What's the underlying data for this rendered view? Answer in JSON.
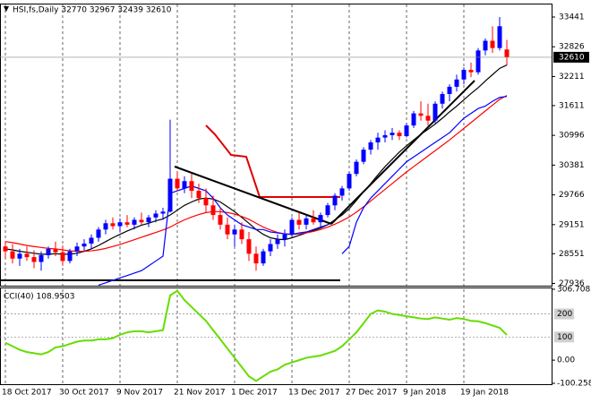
{
  "chart_data": [
    {
      "type": "candlestick",
      "title": "HSI,fs,Daily  32770 32967 32439 32610",
      "categories": [
        "18 Oct 2017",
        null,
        null,
        null,
        null,
        null,
        null,
        null,
        "30 Oct 2017",
        null,
        null,
        null,
        null,
        null,
        null,
        null,
        "9 Nov 2017",
        null,
        null,
        null,
        null,
        null,
        null,
        null,
        "21 Nov 2017",
        null,
        null,
        null,
        null,
        null,
        null,
        null,
        "1 Dec 2017",
        null,
        null,
        null,
        null,
        null,
        null,
        null,
        "13 Dec 2017",
        null,
        null,
        null,
        null,
        null,
        null,
        null,
        "27 Dec 2017",
        null,
        null,
        null,
        null,
        null,
        null,
        null,
        "9 Jan 2018",
        null,
        null,
        null,
        null,
        null,
        null,
        null,
        "19 Jan 2018",
        null,
        null,
        null,
        null,
        null,
        null
      ],
      "open": [
        28700,
        28600,
        28450,
        28550,
        28480,
        28380,
        28520,
        28650,
        28580,
        28400,
        28600,
        28700,
        28760,
        28880,
        29050,
        29180,
        29120,
        29200,
        29150,
        29250,
        29200,
        29300,
        29380,
        29420,
        30100,
        29900,
        30050,
        29850,
        29700,
        29550,
        29350,
        29150,
        28950,
        29050,
        28850,
        28550,
        28350,
        28600,
        28750,
        28850,
        28950,
        29250,
        29150,
        29280,
        29200,
        29350,
        29550,
        29750,
        29900,
        30200,
        30450,
        30700,
        30850,
        30950,
        31000,
        31050,
        30980,
        31200,
        31450,
        31400,
        31300,
        31650,
        31850,
        32000,
        32150,
        32350,
        32300,
        32750,
        32950,
        32800,
        32770
      ],
      "high": [
        28800,
        28750,
        28650,
        28700,
        28620,
        28600,
        28700,
        28800,
        28720,
        28650,
        28780,
        28850,
        28950,
        29100,
        29250,
        29300,
        29280,
        29350,
        29300,
        29400,
        29350,
        29450,
        29500,
        31320,
        30250,
        30150,
        30200,
        30000,
        29900,
        29750,
        29500,
        29300,
        29150,
        29200,
        29000,
        28700,
        28650,
        28850,
        28950,
        29050,
        29300,
        29400,
        29350,
        29450,
        29400,
        29600,
        29800,
        29950,
        30250,
        30500,
        30750,
        30900,
        31050,
        31100,
        31150,
        31100,
        31250,
        31500,
        31700,
        31650,
        31700,
        31900,
        32050,
        32250,
        32400,
        32500,
        32800,
        33000,
        33250,
        33441,
        32967
      ],
      "low": [
        28450,
        28350,
        28300,
        28400,
        28250,
        28200,
        28450,
        28500,
        28300,
        28350,
        28500,
        28600,
        28650,
        28800,
        28950,
        29050,
        29000,
        29100,
        29050,
        29150,
        29100,
        29200,
        29250,
        29400,
        29850,
        29800,
        29700,
        29600,
        29400,
        29250,
        29050,
        28850,
        28700,
        28750,
        28400,
        28200,
        28300,
        28500,
        28650,
        28700,
        28900,
        29050,
        29050,
        29150,
        29100,
        29300,
        29450,
        29650,
        29850,
        30150,
        30400,
        30600,
        30700,
        30850,
        30900,
        30900,
        30950,
        31150,
        31300,
        31200,
        31250,
        31550,
        31700,
        31900,
        32050,
        32200,
        32250,
        32650,
        32700,
        32750,
        32439
      ],
      "close": [
        28600,
        28450,
        28550,
        28480,
        28380,
        28520,
        28650,
        28580,
        28400,
        28600,
        28700,
        28760,
        28880,
        29050,
        29180,
        29120,
        29200,
        29150,
        29250,
        29200,
        29300,
        29380,
        29420,
        30100,
        29900,
        30050,
        29850,
        29700,
        29550,
        29350,
        29150,
        28950,
        29050,
        28850,
        28550,
        28350,
        28600,
        28750,
        28850,
        28950,
        29250,
        29150,
        29280,
        29200,
        29350,
        29550,
        29750,
        29900,
        30200,
        30450,
        30700,
        30850,
        30950,
        31000,
        31050,
        30980,
        31200,
        31450,
        31400,
        31300,
        31650,
        31850,
        32000,
        32150,
        32350,
        32300,
        32750,
        32950,
        32800,
        33250,
        32610
      ],
      "up_color": "#0000ff",
      "down_color": "#ff0000",
      "series": [
        {
          "color": "#000000",
          "values": [
            28650,
            28630,
            28600,
            28580,
            28560,
            28540,
            28540,
            28550,
            28540,
            28540,
            28560,
            28600,
            28650,
            28720,
            28800,
            28880,
            28950,
            29020,
            29080,
            29140,
            29180,
            29230,
            29270,
            29350,
            29450,
            29550,
            29620,
            29680,
            29700,
            29680,
            29620,
            29520,
            29420,
            29300,
            29180,
            29050,
            28950,
            28880,
            28850,
            28840,
            28880,
            28930,
            28980,
            29030,
            29080,
            29150,
            29250,
            29350,
            29480,
            29650,
            29830,
            30000,
            30180,
            30350,
            30500,
            30650,
            30780,
            30900,
            31020,
            31120,
            31230,
            31350,
            31480,
            31600,
            31730,
            31860,
            31980,
            32120,
            32250,
            32380,
            32450
          ]
        },
        {
          "color": "#ff0000",
          "values": [
            28800,
            28780,
            28750,
            28720,
            28700,
            28680,
            28660,
            28650,
            28630,
            28610,
            28600,
            28600,
            28610,
            28630,
            28660,
            28700,
            28740,
            28790,
            28840,
            28890,
            28940,
            28990,
            29040,
            29100,
            29180,
            29250,
            29310,
            29360,
            29400,
            29420,
            29420,
            29400,
            29370,
            29320,
            29260,
            29180,
            29100,
            29040,
            28990,
            28960,
            28950,
            28960,
            28980,
            29010,
            29050,
            29100,
            29160,
            29230,
            29310,
            29410,
            29520,
            29640,
            29760,
            29880,
            30000,
            30120,
            30240,
            30350,
            30460,
            30570,
            30680,
            30790,
            30900,
            31020,
            31140,
            31260,
            31380,
            31500,
            31620,
            31740,
            31820
          ]
        },
        {
          "color": "#0000ff",
          "values": [
            null,
            null,
            null,
            null,
            null,
            null,
            null,
            null,
            null,
            null,
            null,
            null,
            null,
            27900,
            27950,
            28000,
            28050,
            28100,
            28150,
            28200,
            28300,
            28400,
            28500,
            29800,
            29850,
            29900,
            29950,
            29900,
            29850,
            29700,
            29500,
            29350,
            29250,
            29150,
            29100,
            29050,
            29050,
            29000,
            28980,
            28960,
            28950,
            28980,
            29000,
            29050,
            29100,
            29150,
            null,
            28550,
            28700,
            29200,
            29500,
            29700,
            29850,
            30000,
            30150,
            30300,
            30450,
            30550,
            30650,
            30750,
            30850,
            30950,
            31050,
            31200,
            31350,
            31450,
            31550,
            31600,
            31700,
            31780,
            31800
          ]
        }
      ],
      "last_price": 32610,
      "ylim": [
        27890,
        33700
      ],
      "yticks": [
        33441,
        32826,
        32211,
        31611,
        30996,
        30381,
        29766,
        29151,
        28551,
        27936
      ]
    },
    {
      "type": "line",
      "title": "CCI(40) 108.9503",
      "color": "#66dd00",
      "values": [
        75,
        60,
        45,
        35,
        30,
        25,
        35,
        55,
        60,
        70,
        80,
        85,
        85,
        90,
        90,
        95,
        110,
        120,
        125,
        125,
        120,
        125,
        130,
        280,
        300,
        260,
        230,
        200,
        170,
        130,
        90,
        50,
        10,
        -30,
        -70,
        -90,
        -70,
        -50,
        -40,
        -20,
        -10,
        0,
        10,
        15,
        20,
        30,
        40,
        60,
        90,
        120,
        160,
        200,
        215,
        210,
        200,
        195,
        190,
        185,
        180,
        178,
        185,
        180,
        175,
        182,
        178,
        170,
        168,
        160,
        150,
        140,
        108.9503
      ],
      "ylim": [
        -100.258,
        306.7083
      ],
      "yticks": [
        306.7083,
        200,
        100,
        {
          "value": 0,
          "label": "0.00"
        },
        -100.258
      ],
      "grid": true
    }
  ]
}
